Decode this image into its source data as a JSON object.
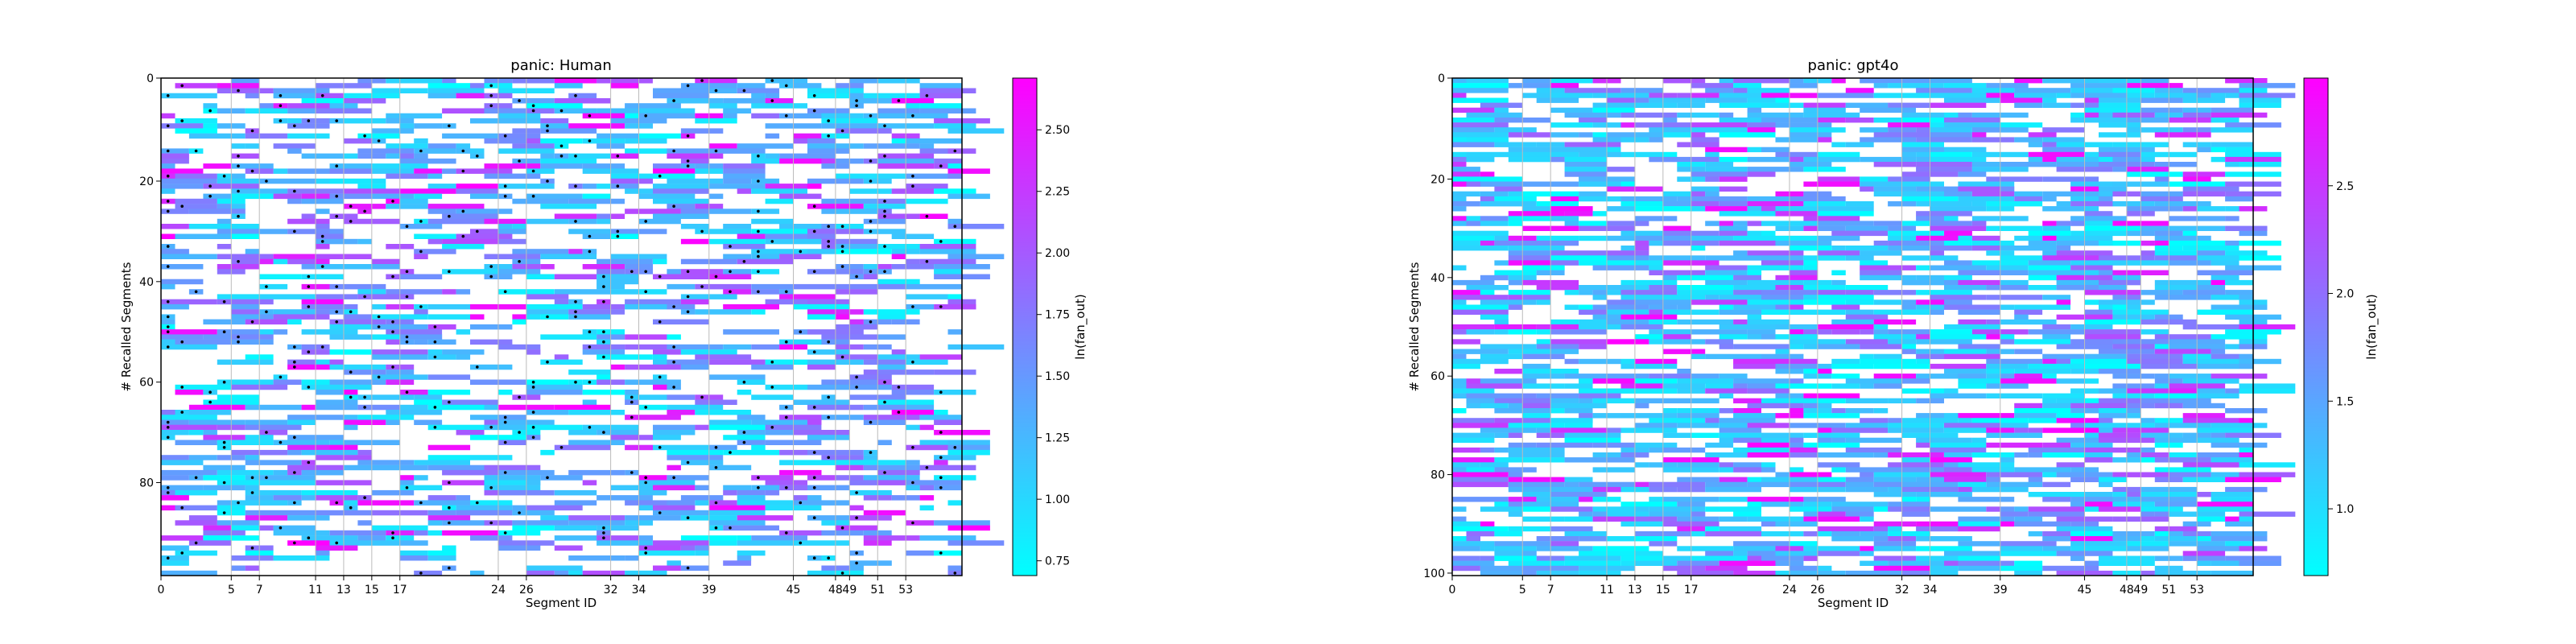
{
  "chart_data": [
    {
      "type": "heatmap",
      "title": "panic: Human",
      "xlabel": "Segment ID",
      "ylabel": "# Recalled Segments",
      "x_ticks": [
        0,
        5,
        7,
        11,
        13,
        15,
        17,
        24,
        26,
        32,
        34,
        39,
        45,
        48,
        49,
        51,
        53
      ],
      "y_ticks": [
        0,
        20,
        40,
        60,
        80
      ],
      "xlim": [
        0,
        57
      ],
      "ylim": [
        99,
        0
      ],
      "colorbar": {
        "label": "ln(fan_out)",
        "min": 0.69,
        "max": 2.71,
        "ticks": [
          "0.75",
          "1.00",
          "1.25",
          "1.50",
          "1.75",
          "2.00",
          "2.25",
          "2.50"
        ],
        "colors": [
          "#00ffff",
          "#ff00ff"
        ]
      },
      "markers": "black dots mark selected cells",
      "seed": 7,
      "density": 0.55,
      "color_bias": 0.35
    },
    {
      "type": "heatmap",
      "title": "panic: gpt4o",
      "xlabel": "Segment ID",
      "ylabel": "# Recalled Segments",
      "x_ticks": [
        0,
        5,
        7,
        11,
        13,
        15,
        17,
        24,
        26,
        32,
        34,
        39,
        45,
        48,
        49,
        51,
        53
      ],
      "y_ticks": [
        0,
        20,
        40,
        60,
        80,
        100
      ],
      "xlim": [
        0,
        57
      ],
      "ylim": [
        101,
        0
      ],
      "colorbar": {
        "label": "ln(fan_out)",
        "min": 0.69,
        "max": 3.0,
        "ticks": [
          "1.0",
          "1.5",
          "2.0",
          "2.5"
        ],
        "colors": [
          "#00ffff",
          "#ff00ff"
        ]
      },
      "markers": "none",
      "seed": 19,
      "density": 0.7,
      "color_bias": 0.28
    }
  ]
}
